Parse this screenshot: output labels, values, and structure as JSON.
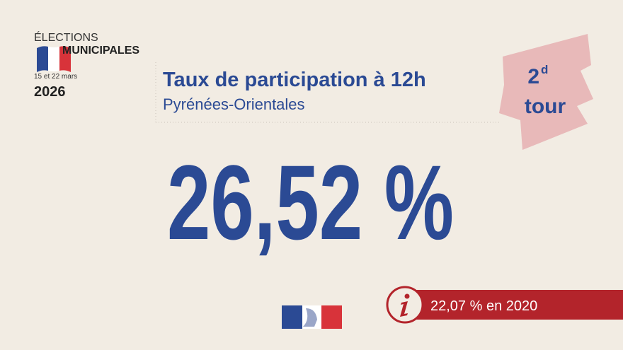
{
  "logo": {
    "line1": "ÉLECTIONS",
    "line2": "MUNICIPALES",
    "dates": "15 et 22 mars",
    "year": "2026"
  },
  "header": {
    "title": "Taux de participation à 12h",
    "subtitle": "Pyrénées-Orientales"
  },
  "badge": {
    "number": "2",
    "suffix": "d",
    "word": "tour"
  },
  "main_value": "26,52 %",
  "comparison": "22,07 % en 2020"
}
